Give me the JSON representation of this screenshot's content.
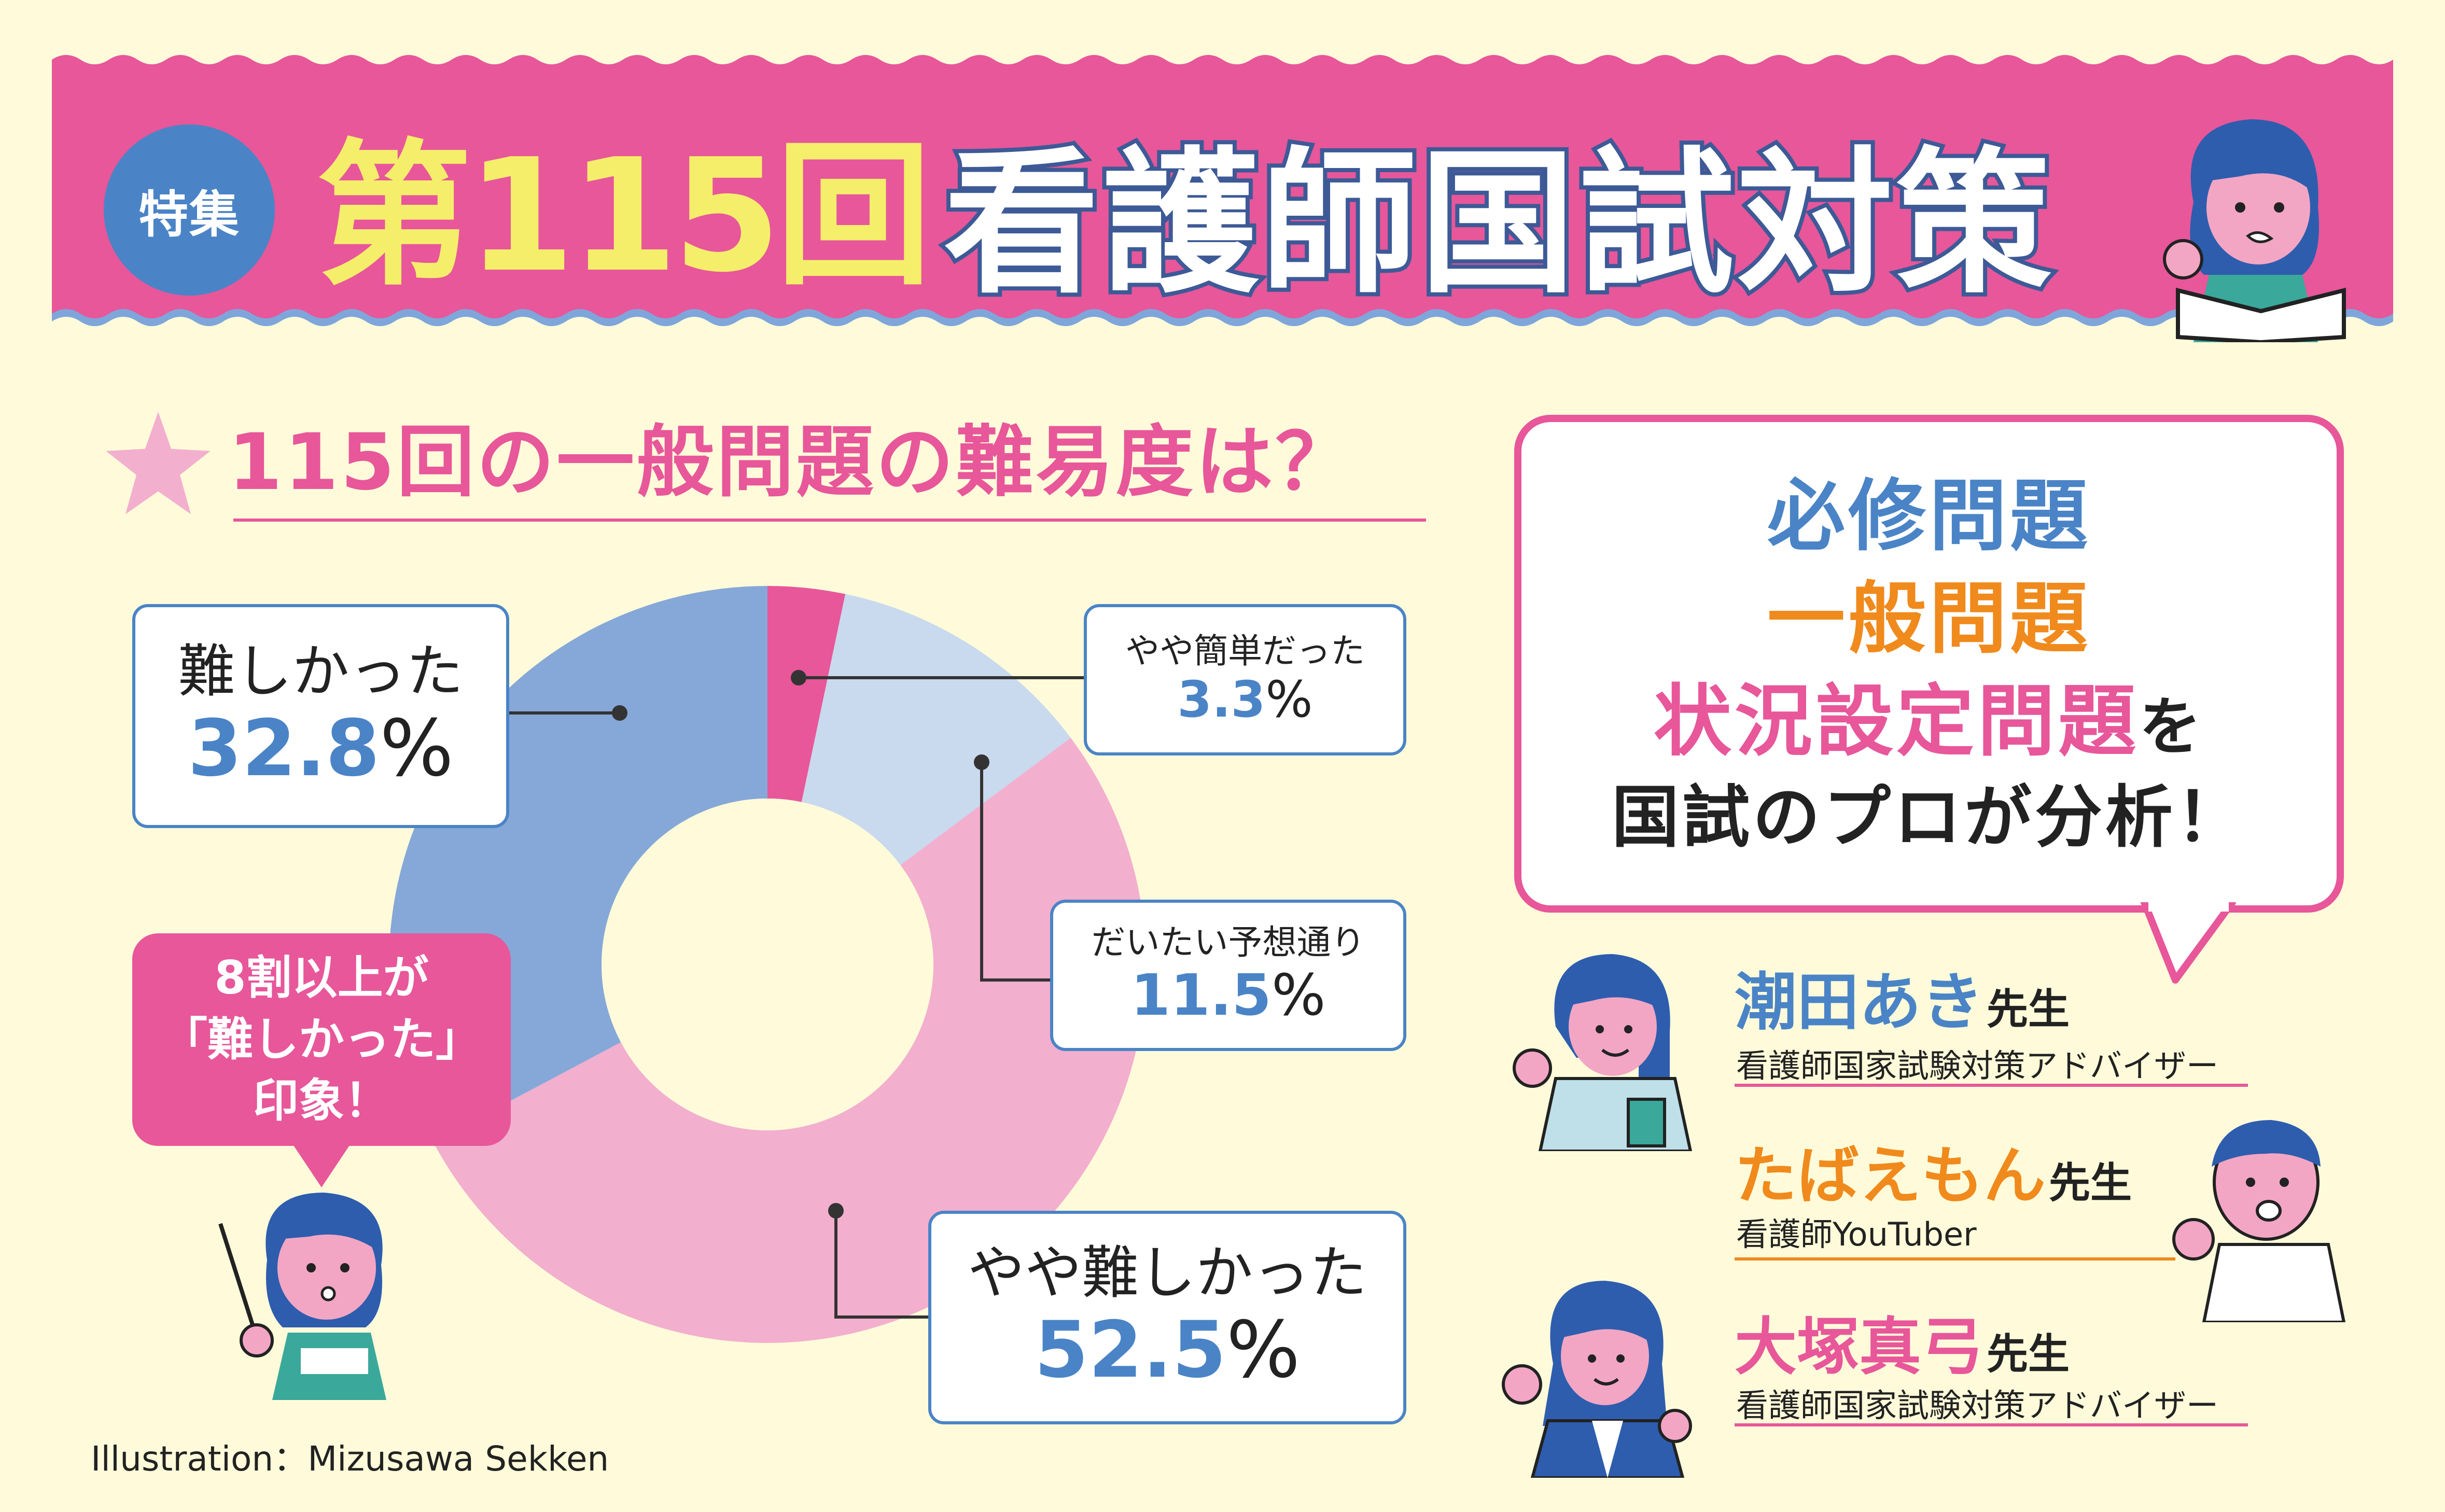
{
  "header": {
    "badge": "特集",
    "issue": "第115回",
    "title": "看護師国試対策"
  },
  "question": "115回の一般問題の難易度は？",
  "chart_data": {
    "type": "pie",
    "title": "115回の一般問題の難易度は？",
    "categories": [
      "やや簡単だった",
      "だいたい予想通り",
      "やや難しかった",
      "難しかった"
    ],
    "values": [
      3.3,
      11.5,
      52.5,
      32.8
    ],
    "unit": "%",
    "colors": [
      "#E7579A",
      "#C9D9EE",
      "#F3AFCE",
      "#86A8D8"
    ],
    "donut": true
  },
  "callouts": {
    "easy": {
      "label": "やや簡単だった",
      "value": "3.3",
      "unit": "%"
    },
    "expected": {
      "label": "だいたい予想通り",
      "value": "11.5",
      "unit": "%"
    },
    "somewhat_hard": {
      "label": "やや難しかった",
      "value": "52.5",
      "unit": "%"
    },
    "hard": {
      "label": "難しかった",
      "value": "32.8",
      "unit": "%"
    }
  },
  "note": {
    "line1": "8割以上が",
    "line2": "「難しかった」",
    "line3": "印象！"
  },
  "credit": "Illustration：Mizusawa Sekken",
  "analysis": {
    "line1": "必修問題",
    "line2": "一般問題",
    "line3": "状況設定問題",
    "line3_suffix": "を",
    "line4": "国試のプロが分析！"
  },
  "teachers": [
    {
      "name": "潮田あき",
      "suffix": "先生",
      "role": "看護師国家試験対策アドバイザー",
      "color": "#4A84C6"
    },
    {
      "name": "たばえもん",
      "suffix": "先生",
      "role": "看護師YouTuber",
      "color": "#F08A1C"
    },
    {
      "name": "大塚真弓",
      "suffix": "先生",
      "role": "看護師国家試験対策アドバイザー",
      "color": "#E7579A"
    }
  ],
  "colors": {
    "background": "#FFFBDA",
    "pink": "#E7579A",
    "blue": "#4A84C6",
    "navy": "#3D5A97",
    "orange": "#F08A1C",
    "yellow": "#F5EE6B"
  }
}
